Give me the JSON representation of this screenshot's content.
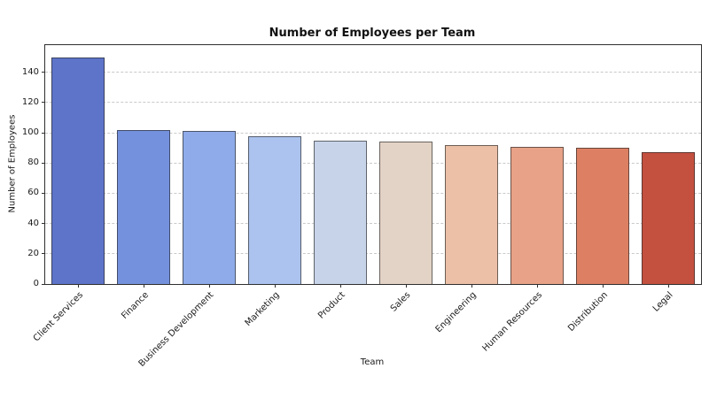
{
  "chart_data": {
    "type": "bar",
    "title": "Number of Employees per Team",
    "xlabel": "Team",
    "ylabel": "Number of Employees",
    "categories": [
      "Client Services",
      "Finance",
      "Business Development",
      "Marketing",
      "Product",
      "Sales",
      "Engineering",
      "Human Resources",
      "Distribution",
      "Legal"
    ],
    "values": [
      150,
      102,
      101,
      98,
      95,
      94,
      92,
      91,
      90,
      87
    ],
    "bar_colors": [
      "#5d74c9",
      "#7491dd",
      "#8fabe9",
      "#abc3ee",
      "#c6d3e9",
      "#e3d3c6",
      "#ecc0a7",
      "#e7a287",
      "#dc7f63",
      "#c4503f"
    ],
    "bar_edge_color": "rgba(40,40,40,0.65)",
    "yticks": [
      0,
      20,
      40,
      60,
      80,
      100,
      120,
      140
    ],
    "ylim": [
      0,
      158
    ],
    "grid": "horizontal-dashed",
    "legend": "none",
    "tick_label_rotation_deg": 45
  }
}
